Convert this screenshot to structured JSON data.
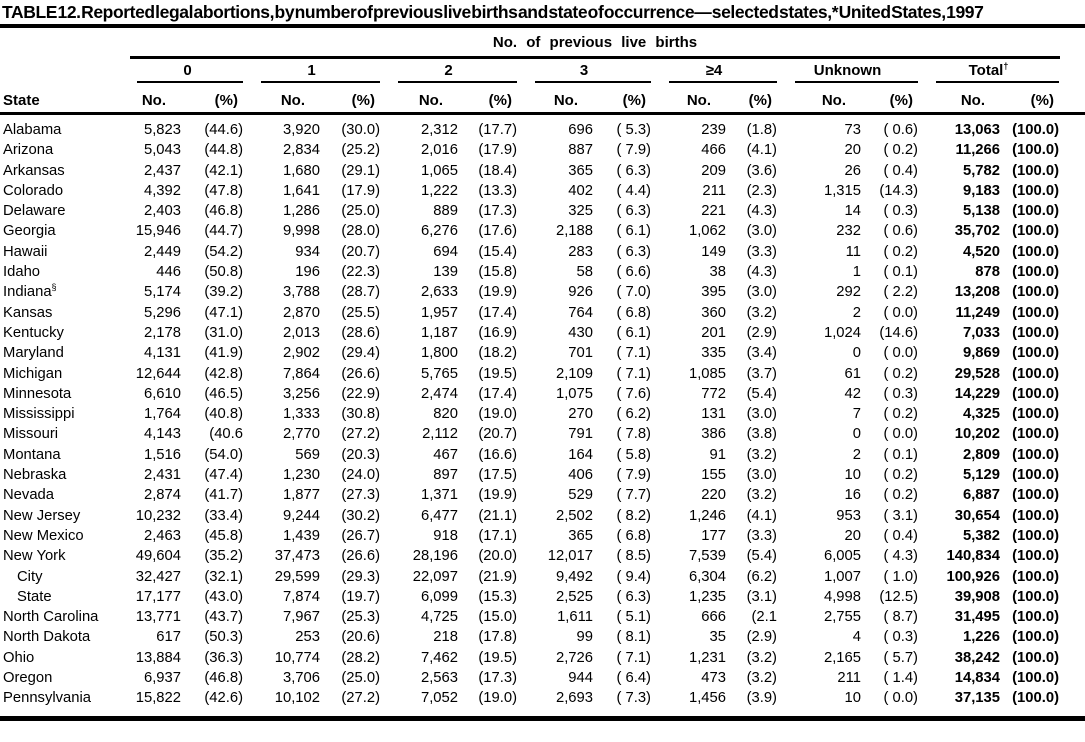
{
  "title": "TABLE 12. Reported legal abortions, by number of previous live births and state of occurrence— selected states,* United States, 1997",
  "table": {
    "spanner": "No. of previous live births",
    "state_header": "State",
    "subheaders": {
      "no": "No.",
      "pct": "(%)"
    },
    "groups": [
      {
        "label": "0",
        "sup": ""
      },
      {
        "label": "1",
        "sup": ""
      },
      {
        "label": "2",
        "sup": ""
      },
      {
        "label": "3",
        "sup": ""
      },
      {
        "label": "≥4",
        "sup": ""
      },
      {
        "label": "Unknown",
        "sup": ""
      },
      {
        "label": "Total",
        "sup": "†"
      }
    ],
    "rows": [
      {
        "state": "Alabama",
        "sup": "",
        "indent": false,
        "cells": [
          "5,823",
          "(44.6)",
          "3,920",
          "(30.0)",
          "2,312",
          "(17.7)",
          "696",
          "( 5.3)",
          "239",
          "(1.8)",
          "73",
          "( 0.6)",
          "13,063",
          "(100.0)"
        ]
      },
      {
        "state": "Arizona",
        "sup": "",
        "indent": false,
        "cells": [
          "5,043",
          "(44.8)",
          "2,834",
          "(25.2)",
          "2,016",
          "(17.9)",
          "887",
          "( 7.9)",
          "466",
          "(4.1)",
          "20",
          "( 0.2)",
          "11,266",
          "(100.0)"
        ]
      },
      {
        "state": "Arkansas",
        "sup": "",
        "indent": false,
        "cells": [
          "2,437",
          "(42.1)",
          "1,680",
          "(29.1)",
          "1,065",
          "(18.4)",
          "365",
          "( 6.3)",
          "209",
          "(3.6)",
          "26",
          "( 0.4)",
          "5,782",
          "(100.0)"
        ]
      },
      {
        "state": "Colorado",
        "sup": "",
        "indent": false,
        "cells": [
          "4,392",
          "(47.8)",
          "1,641",
          "(17.9)",
          "1,222",
          "(13.3)",
          "402",
          "( 4.4)",
          "211",
          "(2.3)",
          "1,315",
          "(14.3)",
          "9,183",
          "(100.0)"
        ]
      },
      {
        "state": "Delaware",
        "sup": "",
        "indent": false,
        "cells": [
          "2,403",
          "(46.8)",
          "1,286",
          "(25.0)",
          "889",
          "(17.3)",
          "325",
          "( 6.3)",
          "221",
          "(4.3)",
          "14",
          "( 0.3)",
          "5,138",
          "(100.0)"
        ]
      },
      {
        "state": "Georgia",
        "sup": "",
        "indent": false,
        "cells": [
          "15,946",
          "(44.7)",
          "9,998",
          "(28.0)",
          "6,276",
          "(17.6)",
          "2,188",
          "( 6.1)",
          "1,062",
          "(3.0)",
          "232",
          "( 0.6)",
          "35,702",
          "(100.0)"
        ]
      },
      {
        "state": "Hawaii",
        "sup": "",
        "indent": false,
        "cells": [
          "2,449",
          "(54.2)",
          "934",
          "(20.7)",
          "694",
          "(15.4)",
          "283",
          "( 6.3)",
          "149",
          "(3.3)",
          "11",
          "( 0.2)",
          "4,520",
          "(100.0)"
        ]
      },
      {
        "state": "Idaho",
        "sup": "",
        "indent": false,
        "cells": [
          "446",
          "(50.8)",
          "196",
          "(22.3)",
          "139",
          "(15.8)",
          "58",
          "( 6.6)",
          "38",
          "(4.3)",
          "1",
          "( 0.1)",
          "878",
          "(100.0)"
        ]
      },
      {
        "state": "Indiana",
        "sup": "§",
        "indent": false,
        "cells": [
          "5,174",
          "(39.2)",
          "3,788",
          "(28.7)",
          "2,633",
          "(19.9)",
          "926",
          "( 7.0)",
          "395",
          "(3.0)",
          "292",
          "( 2.2)",
          "13,208",
          "(100.0)"
        ]
      },
      {
        "state": "Kansas",
        "sup": "",
        "indent": false,
        "cells": [
          "5,296",
          "(47.1)",
          "2,870",
          "(25.5)",
          "1,957",
          "(17.4)",
          "764",
          "( 6.8)",
          "360",
          "(3.2)",
          "2",
          "( 0.0)",
          "11,249",
          "(100.0)"
        ]
      },
      {
        "state": "Kentucky",
        "sup": "",
        "indent": false,
        "cells": [
          "2,178",
          "(31.0)",
          "2,013",
          "(28.6)",
          "1,187",
          "(16.9)",
          "430",
          "( 6.1)",
          "201",
          "(2.9)",
          "1,024",
          "(14.6)",
          "7,033",
          "(100.0)"
        ]
      },
      {
        "state": "Maryland",
        "sup": "",
        "indent": false,
        "cells": [
          "4,131",
          "(41.9)",
          "2,902",
          "(29.4)",
          "1,800",
          "(18.2)",
          "701",
          "( 7.1)",
          "335",
          "(3.4)",
          "0",
          "( 0.0)",
          "9,869",
          "(100.0)"
        ]
      },
      {
        "state": "Michigan",
        "sup": "",
        "indent": false,
        "cells": [
          "12,644",
          "(42.8)",
          "7,864",
          "(26.6)",
          "5,765",
          "(19.5)",
          "2,109",
          "( 7.1)",
          "1,085",
          "(3.7)",
          "61",
          "( 0.2)",
          "29,528",
          "(100.0)"
        ]
      },
      {
        "state": "Minnesota",
        "sup": "",
        "indent": false,
        "cells": [
          "6,610",
          "(46.5)",
          "3,256",
          "(22.9)",
          "2,474",
          "(17.4)",
          "1,075",
          "( 7.6)",
          "772",
          "(5.4)",
          "42",
          "( 0.3)",
          "14,229",
          "(100.0)"
        ]
      },
      {
        "state": "Mississippi",
        "sup": "",
        "indent": false,
        "cells": [
          "1,764",
          "(40.8)",
          "1,333",
          "(30.8)",
          "820",
          "(19.0)",
          "270",
          "( 6.2)",
          "131",
          "(3.0)",
          "7",
          "( 0.2)",
          "4,325",
          "(100.0)"
        ]
      },
      {
        "state": "Missouri",
        "sup": "",
        "indent": false,
        "cells": [
          "4,143",
          "(40.6",
          "2,770",
          "(27.2)",
          "2,112",
          "(20.7)",
          "791",
          "( 7.8)",
          "386",
          "(3.8)",
          "0",
          "( 0.0)",
          "10,202",
          "(100.0)"
        ]
      },
      {
        "state": "Montana",
        "sup": "",
        "indent": false,
        "cells": [
          "1,516",
          "(54.0)",
          "569",
          "(20.3)",
          "467",
          "(16.6)",
          "164",
          "( 5.8)",
          "91",
          "(3.2)",
          "2",
          "( 0.1)",
          "2,809",
          "(100.0)"
        ]
      },
      {
        "state": "Nebraska",
        "sup": "",
        "indent": false,
        "cells": [
          "2,431",
          "(47.4)",
          "1,230",
          "(24.0)",
          "897",
          "(17.5)",
          "406",
          "( 7.9)",
          "155",
          "(3.0)",
          "10",
          "( 0.2)",
          "5,129",
          "(100.0)"
        ]
      },
      {
        "state": "Nevada",
        "sup": "",
        "indent": false,
        "cells": [
          "2,874",
          "(41.7)",
          "1,877",
          "(27.3)",
          "1,371",
          "(19.9)",
          "529",
          "( 7.7)",
          "220",
          "(3.2)",
          "16",
          "( 0.2)",
          "6,887",
          "(100.0)"
        ]
      },
      {
        "state": "New Jersey",
        "sup": "",
        "indent": false,
        "cells": [
          "10,232",
          "(33.4)",
          "9,244",
          "(30.2)",
          "6,477",
          "(21.1)",
          "2,502",
          "( 8.2)",
          "1,246",
          "(4.1)",
          "953",
          "( 3.1)",
          "30,654",
          "(100.0)"
        ]
      },
      {
        "state": "New Mexico",
        "sup": "",
        "indent": false,
        "cells": [
          "2,463",
          "(45.8)",
          "1,439",
          "(26.7)",
          "918",
          "(17.1)",
          "365",
          "( 6.8)",
          "177",
          "(3.3)",
          "20",
          "( 0.4)",
          "5,382",
          "(100.0)"
        ]
      },
      {
        "state": "New York",
        "sup": "",
        "indent": false,
        "cells": [
          "49,604",
          "(35.2)",
          "37,473",
          "(26.6)",
          "28,196",
          "(20.0)",
          "12,017",
          "( 8.5)",
          "7,539",
          "(5.4)",
          "6,005",
          "( 4.3)",
          "140,834",
          "(100.0)"
        ]
      },
      {
        "state": "City",
        "sup": "",
        "indent": true,
        "cells": [
          "32,427",
          "(32.1)",
          "29,599",
          "(29.3)",
          "22,097",
          "(21.9)",
          "9,492",
          "( 9.4)",
          "6,304",
          "(6.2)",
          "1,007",
          "( 1.0)",
          "100,926",
          "(100.0)"
        ]
      },
      {
        "state": "State",
        "sup": "",
        "indent": true,
        "cells": [
          "17,177",
          "(43.0)",
          "7,874",
          "(19.7)",
          "6,099",
          "(15.3)",
          "2,525",
          "( 6.3)",
          "1,235",
          "(3.1)",
          "4,998",
          "(12.5)",
          "39,908",
          "(100.0)"
        ]
      },
      {
        "state": "North Carolina",
        "sup": "",
        "indent": false,
        "cells": [
          "13,771",
          "(43.7)",
          "7,967",
          "(25.3)",
          "4,725",
          "(15.0)",
          "1,611",
          "( 5.1)",
          "666",
          "(2.1",
          "2,755",
          "( 8.7)",
          "31,495",
          "(100.0)"
        ]
      },
      {
        "state": "North Dakota",
        "sup": "",
        "indent": false,
        "cells": [
          "617",
          "(50.3)",
          "253",
          "(20.6)",
          "218",
          "(17.8)",
          "99",
          "( 8.1)",
          "35",
          "(2.9)",
          "4",
          "( 0.3)",
          "1,226",
          "(100.0)"
        ]
      },
      {
        "state": "Ohio",
        "sup": "",
        "indent": false,
        "cells": [
          "13,884",
          "(36.3)",
          "10,774",
          "(28.2)",
          "7,462",
          "(19.5)",
          "2,726",
          "( 7.1)",
          "1,231",
          "(3.2)",
          "2,165",
          "( 5.7)",
          "38,242",
          "(100.0)"
        ]
      },
      {
        "state": "Oregon",
        "sup": "",
        "indent": false,
        "cells": [
          "6,937",
          "(46.8)",
          "3,706",
          "(25.0)",
          "2,563",
          "(17.3)",
          "944",
          "( 6.4)",
          "473",
          "(3.2)",
          "211",
          "( 1.4)",
          "14,834",
          "(100.0)"
        ]
      },
      {
        "state": "Pennsylvania",
        "sup": "",
        "indent": false,
        "cells": [
          "15,822",
          "(42.6)",
          "10,102",
          "(27.2)",
          "7,052",
          "(19.0)",
          "2,693",
          "( 7.3)",
          "1,456",
          "(3.9)",
          "10",
          "( 0.0)",
          "37,135",
          "(100.0)"
        ]
      }
    ]
  }
}
